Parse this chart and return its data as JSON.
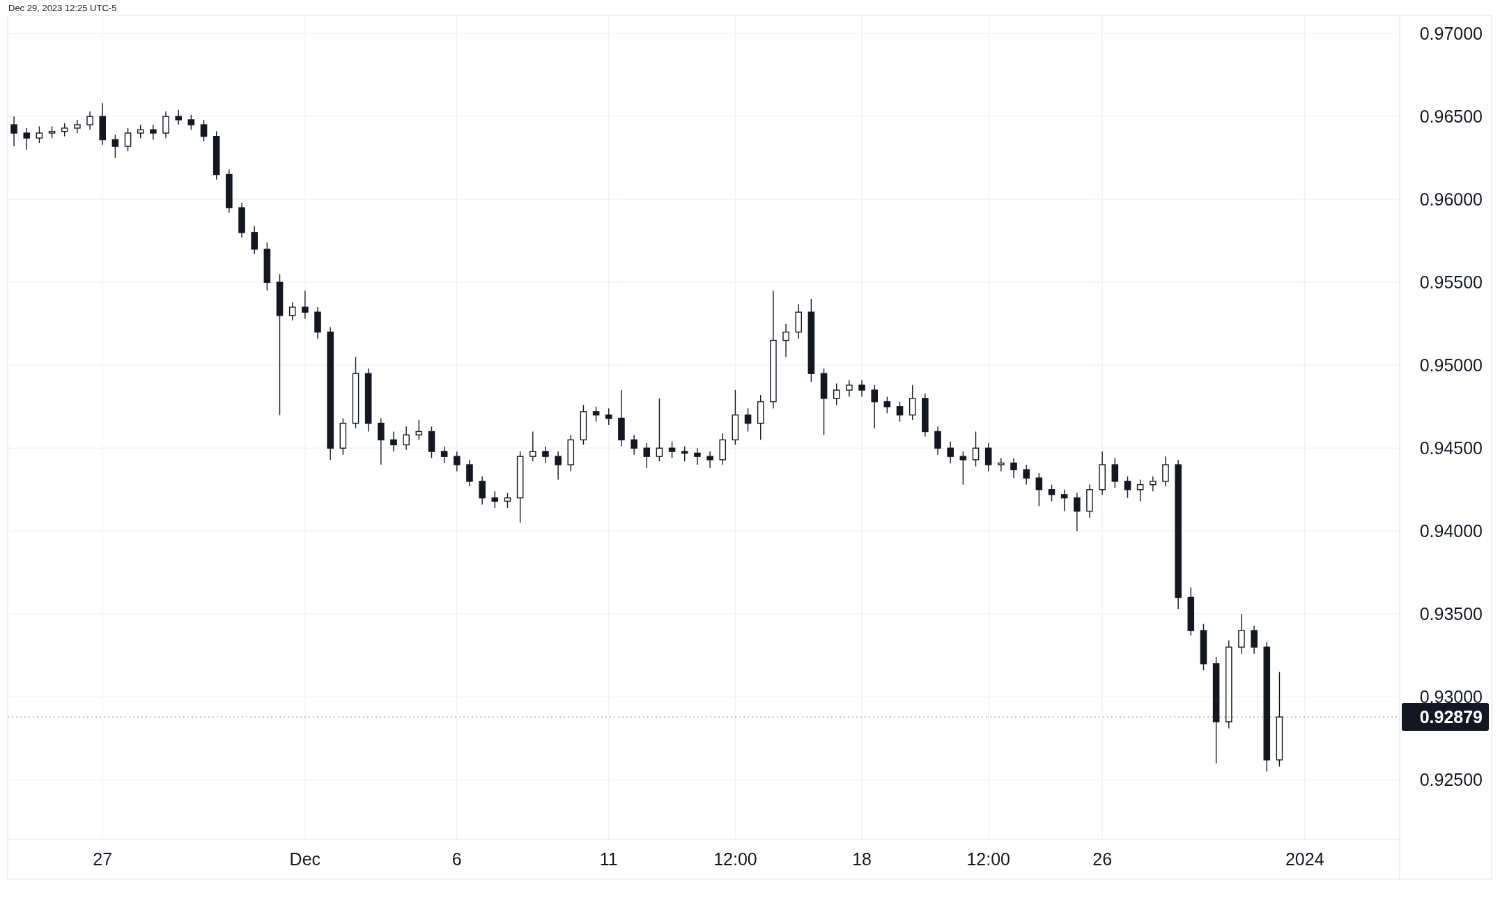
{
  "chart_data": {
    "type": "candlestick",
    "annotations": [
      "Dec 29, 2023 12:25 UTC-5"
    ],
    "categories": [
      null,
      null,
      null,
      null,
      null,
      null,
      null,
      "27",
      null,
      null,
      null,
      null,
      null,
      null,
      null,
      null,
      null,
      null,
      null,
      null,
      null,
      null,
      null,
      "Dec",
      null,
      null,
      null,
      null,
      null,
      null,
      null,
      null,
      null,
      null,
      null,
      "6",
      null,
      null,
      null,
      null,
      null,
      null,
      null,
      null,
      null,
      null,
      null,
      "11",
      null,
      null,
      null,
      null,
      null,
      null,
      null,
      null,
      null,
      "12:00",
      null,
      null,
      null,
      null,
      null,
      null,
      null,
      null,
      null,
      "18",
      null,
      null,
      null,
      null,
      null,
      null,
      null,
      null,
      null,
      "12:00",
      null,
      null,
      null,
      null,
      null,
      null,
      null,
      null,
      "26",
      null,
      null,
      null,
      null,
      null,
      null,
      null,
      null,
      null,
      null,
      null,
      null,
      null,
      null,
      null,
      "2024",
      null,
      null,
      null,
      null,
      null,
      null,
      null
    ],
    "ohlc": [
      [
        0.9645,
        0.965,
        0.9632,
        0.964
      ],
      [
        0.964,
        0.9643,
        0.963,
        0.9637
      ],
      [
        0.9637,
        0.9644,
        0.9634,
        0.964
      ],
      [
        0.964,
        0.9644,
        0.9637,
        0.9641
      ],
      [
        0.9641,
        0.9646,
        0.9638,
        0.9643
      ],
      [
        0.9643,
        0.9648,
        0.964,
        0.9645
      ],
      [
        0.9645,
        0.9653,
        0.9642,
        0.965
      ],
      [
        0.965,
        0.9658,
        0.9633,
        0.9636
      ],
      [
        0.9636,
        0.9639,
        0.9625,
        0.9632
      ],
      [
        0.9632,
        0.9643,
        0.9629,
        0.964
      ],
      [
        0.964,
        0.9645,
        0.9637,
        0.9642
      ],
      [
        0.9642,
        0.9645,
        0.9636,
        0.964
      ],
      [
        0.964,
        0.9653,
        0.9637,
        0.965
      ],
      [
        0.965,
        0.9654,
        0.9645,
        0.9648
      ],
      [
        0.9648,
        0.9651,
        0.9642,
        0.9645
      ],
      [
        0.9645,
        0.9648,
        0.9635,
        0.9638
      ],
      [
        0.9638,
        0.9641,
        0.9612,
        0.9615
      ],
      [
        0.9615,
        0.9618,
        0.9592,
        0.9595
      ],
      [
        0.9595,
        0.9598,
        0.9577,
        0.958
      ],
      [
        0.958,
        0.9584,
        0.9567,
        0.957
      ],
      [
        0.957,
        0.9574,
        0.9545,
        0.955
      ],
      [
        0.955,
        0.9555,
        0.947,
        0.953
      ],
      [
        0.953,
        0.9538,
        0.9527,
        0.9535
      ],
      [
        0.9535,
        0.9545,
        0.9528,
        0.9532
      ],
      [
        0.9532,
        0.9535,
        0.9516,
        0.952
      ],
      [
        0.952,
        0.9523,
        0.9443,
        0.945
      ],
      [
        0.945,
        0.9468,
        0.9446,
        0.9465
      ],
      [
        0.9465,
        0.9505,
        0.9462,
        0.9495
      ],
      [
        0.9495,
        0.9498,
        0.946,
        0.9465
      ],
      [
        0.9465,
        0.9468,
        0.944,
        0.9455
      ],
      [
        0.9455,
        0.946,
        0.9448,
        0.9452
      ],
      [
        0.9452,
        0.9463,
        0.9449,
        0.9458
      ],
      [
        0.9458,
        0.9467,
        0.9455,
        0.946
      ],
      [
        0.946,
        0.9463,
        0.9444,
        0.9448
      ],
      [
        0.9448,
        0.9451,
        0.9441,
        0.9445
      ],
      [
        0.9445,
        0.9448,
        0.9436,
        0.944
      ],
      [
        0.944,
        0.9443,
        0.9427,
        0.943
      ],
      [
        0.943,
        0.9433,
        0.9416,
        0.942
      ],
      [
        0.942,
        0.9424,
        0.9414,
        0.9418
      ],
      [
        0.9418,
        0.9423,
        0.9414,
        0.942
      ],
      [
        0.942,
        0.9448,
        0.9405,
        0.9445
      ],
      [
        0.9445,
        0.946,
        0.9442,
        0.9448
      ],
      [
        0.9448,
        0.9451,
        0.9441,
        0.9445
      ],
      [
        0.9445,
        0.9448,
        0.9431,
        0.944
      ],
      [
        0.944,
        0.9458,
        0.9436,
        0.9455
      ],
      [
        0.9455,
        0.9476,
        0.9452,
        0.9472
      ],
      [
        0.9472,
        0.9475,
        0.9466,
        0.947
      ],
      [
        0.947,
        0.9474,
        0.9464,
        0.9468
      ],
      [
        0.9468,
        0.9485,
        0.9451,
        0.9455
      ],
      [
        0.9455,
        0.9458,
        0.9446,
        0.945
      ],
      [
        0.945,
        0.9453,
        0.9438,
        0.9445
      ],
      [
        0.9445,
        0.948,
        0.9442,
        0.945
      ],
      [
        0.945,
        0.9454,
        0.9444,
        0.9448
      ],
      [
        0.9448,
        0.9451,
        0.9442,
        0.9447
      ],
      [
        0.9447,
        0.945,
        0.944,
        0.9445
      ],
      [
        0.9445,
        0.9448,
        0.9438,
        0.9443
      ],
      [
        0.9443,
        0.9459,
        0.944,
        0.9455
      ],
      [
        0.9455,
        0.9485,
        0.9452,
        0.947
      ],
      [
        0.947,
        0.9474,
        0.946,
        0.9465
      ],
      [
        0.9465,
        0.9482,
        0.9455,
        0.9478
      ],
      [
        0.9478,
        0.9545,
        0.9474,
        0.9515
      ],
      [
        0.9515,
        0.9525,
        0.9505,
        0.952
      ],
      [
        0.952,
        0.9537,
        0.9516,
        0.9532
      ],
      [
        0.9532,
        0.954,
        0.949,
        0.9495
      ],
      [
        0.9495,
        0.9498,
        0.9458,
        0.948
      ],
      [
        0.948,
        0.9489,
        0.9476,
        0.9485
      ],
      [
        0.9485,
        0.9491,
        0.9481,
        0.9488
      ],
      [
        0.9488,
        0.9491,
        0.9481,
        0.9485
      ],
      [
        0.9485,
        0.9488,
        0.9462,
        0.9478
      ],
      [
        0.9478,
        0.9481,
        0.9471,
        0.9475
      ],
      [
        0.9475,
        0.9478,
        0.9466,
        0.947
      ],
      [
        0.947,
        0.9488,
        0.9467,
        0.948
      ],
      [
        0.948,
        0.9483,
        0.9457,
        0.946
      ],
      [
        0.946,
        0.9463,
        0.9446,
        0.945
      ],
      [
        0.945,
        0.9454,
        0.9441,
        0.9445
      ],
      [
        0.9445,
        0.9448,
        0.9428,
        0.9443
      ],
      [
        0.9443,
        0.946,
        0.9439,
        0.945
      ],
      [
        0.945,
        0.9453,
        0.9436,
        0.944
      ],
      [
        0.944,
        0.9444,
        0.9436,
        0.9441
      ],
      [
        0.9441,
        0.9444,
        0.9432,
        0.9437
      ],
      [
        0.9437,
        0.944,
        0.9428,
        0.9432
      ],
      [
        0.9432,
        0.9435,
        0.9415,
        0.9425
      ],
      [
        0.9425,
        0.9428,
        0.9418,
        0.9422
      ],
      [
        0.9422,
        0.9425,
        0.9412,
        0.942
      ],
      [
        0.942,
        0.9423,
        0.94,
        0.9412
      ],
      [
        0.9412,
        0.9428,
        0.9408,
        0.9425
      ],
      [
        0.9425,
        0.9448,
        0.9422,
        0.944
      ],
      [
        0.944,
        0.9444,
        0.9426,
        0.943
      ],
      [
        0.943,
        0.9433,
        0.942,
        0.9425
      ],
      [
        0.9425,
        0.9431,
        0.9418,
        0.9428
      ],
      [
        0.9428,
        0.9433,
        0.9424,
        0.943
      ],
      [
        0.943,
        0.9445,
        0.9427,
        0.944
      ],
      [
        0.944,
        0.9443,
        0.9353,
        0.936
      ],
      [
        0.936,
        0.9366,
        0.9337,
        0.934
      ],
      [
        0.934,
        0.9344,
        0.9316,
        0.932
      ],
      [
        0.932,
        0.9324,
        0.926,
        0.9285
      ],
      [
        0.9285,
        0.9334,
        0.9281,
        0.933
      ],
      [
        0.933,
        0.935,
        0.9326,
        0.934
      ],
      [
        0.934,
        0.9343,
        0.9326,
        0.933
      ],
      [
        0.933,
        0.9333,
        0.9255,
        0.9262
      ],
      [
        0.9262,
        0.9315,
        0.9258,
        0.92879
      ],
      null,
      null,
      null,
      null,
      null,
      null,
      null,
      null,
      null
    ],
    "color": "#131722",
    "ylim": [
      0.9214,
      0.9711
    ],
    "yticks": [
      {
        "value": 0.925,
        "label": "0.92500"
      },
      {
        "value": 0.93,
        "label": "0.93000"
      },
      {
        "value": 0.935,
        "label": "0.93500"
      },
      {
        "value": 0.94,
        "label": "0.94000"
      },
      {
        "value": 0.945,
        "label": "0.94500"
      },
      {
        "value": 0.95,
        "label": "0.95000"
      },
      {
        "value": 0.955,
        "label": "0.95500"
      },
      {
        "value": 0.96,
        "label": "0.96000"
      },
      {
        "value": 0.965,
        "label": "0.96500"
      },
      {
        "value": 0.97,
        "label": "0.97000"
      }
    ],
    "ref_lines": [
      {
        "axis": "y",
        "value": 0.92879,
        "label": "0.92879",
        "color": "#131722",
        "line_style": "dotted"
      }
    ],
    "grid": true
  }
}
